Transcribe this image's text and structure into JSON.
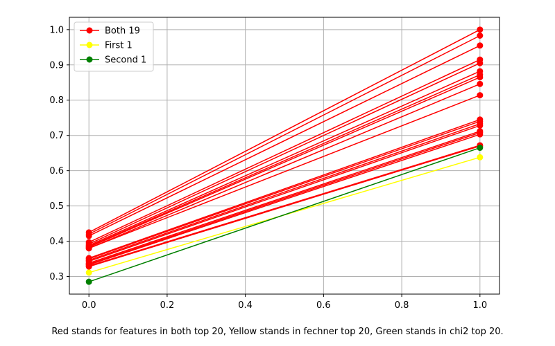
{
  "chart_data": {
    "type": "line",
    "title": "",
    "xlabel": "",
    "ylabel": "",
    "xlim": [
      -0.05,
      1.05
    ],
    "ylim": [
      0.25,
      1.035
    ],
    "xticks": [
      0.0,
      0.2,
      0.4,
      0.6,
      0.8,
      1.0
    ],
    "yticks": [
      0.3,
      0.4,
      0.5,
      0.6,
      0.7,
      0.8,
      0.9,
      1.0
    ],
    "grid": true,
    "legend_position": "top-left",
    "x": [
      0,
      1
    ],
    "series": [
      {
        "name": "Both 19",
        "color": "#ff0000",
        "marker": "circle",
        "pairs": [
          [
            0.425,
            1.0
          ],
          [
            0.42,
            0.983
          ],
          [
            0.415,
            0.955
          ],
          [
            0.397,
            0.915
          ],
          [
            0.392,
            0.905
          ],
          [
            0.388,
            0.882
          ],
          [
            0.385,
            0.872
          ],
          [
            0.383,
            0.865
          ],
          [
            0.38,
            0.846
          ],
          [
            0.38,
            0.814
          ],
          [
            0.352,
            0.745
          ],
          [
            0.35,
            0.74
          ],
          [
            0.346,
            0.733
          ],
          [
            0.343,
            0.728
          ],
          [
            0.338,
            0.712
          ],
          [
            0.335,
            0.708
          ],
          [
            0.333,
            0.703
          ],
          [
            0.33,
            0.672
          ],
          [
            0.328,
            0.67
          ]
        ]
      },
      {
        "name": "First 1",
        "color": "#ffff00",
        "marker": "circle",
        "pairs": [
          [
            0.311,
            0.638
          ]
        ]
      },
      {
        "name": "Second 1",
        "color": "#008000",
        "marker": "circle",
        "pairs": [
          [
            0.285,
            0.665
          ]
        ]
      }
    ]
  },
  "caption": "Red stands for features in both top 20, Yellow stands in fechner top 20, Green stands in chi2 top 20."
}
